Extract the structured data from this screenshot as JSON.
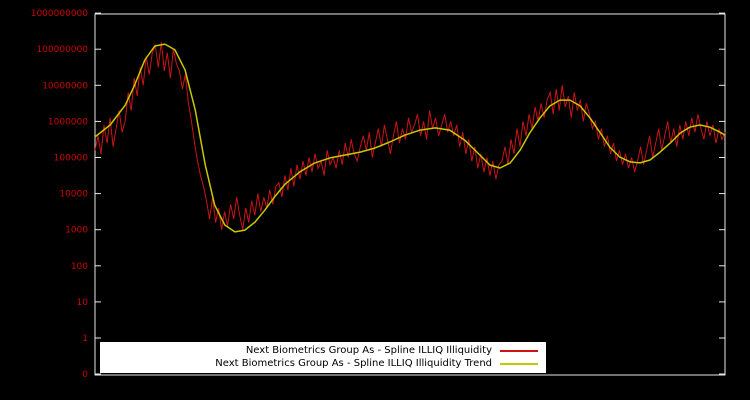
{
  "colors": {
    "background": "#000000",
    "axis_border": "#e8e8e8",
    "tick_label": "#cc0000",
    "legend_background": "#ffffff",
    "legend_text": "#000000"
  },
  "chart_data": {
    "type": "line",
    "title": "",
    "xlabel": "",
    "ylabel": "",
    "x_axis": "time index (no x tick labels shown)",
    "y_scale": "log10",
    "y_ticks_bottom_to_top": [
      "0",
      "1",
      "10",
      "100",
      "1000",
      "10000",
      "100000",
      "1000000",
      "10000000",
      "100000000",
      "1000000000"
    ],
    "grid": "off",
    "legend_position": "bottom-center inside plot, white box",
    "series": [
      {
        "name": "Next Biometrics Group As - Spline ILLIQ Illiquidity",
        "color": "#cc1414",
        "style": "noisy line",
        "y_encoding": "log10(value)",
        "log10_values": [
          5.2,
          5.6,
          5.1,
          5.9,
          5.4,
          6.1,
          5.3,
          5.8,
          6.3,
          5.7,
          6.0,
          6.8,
          6.3,
          7.2,
          6.7,
          7.5,
          7.0,
          7.8,
          7.3,
          7.9,
          8.1,
          7.5,
          8.2,
          7.4,
          7.9,
          7.2,
          8.0,
          7.6,
          7.4,
          6.9,
          7.3,
          6.5,
          6.0,
          5.4,
          4.9,
          4.5,
          4.2,
          3.8,
          3.3,
          3.9,
          3.2,
          3.6,
          3.0,
          3.5,
          3.1,
          3.7,
          3.3,
          3.9,
          3.4,
          3.0,
          3.6,
          3.2,
          3.8,
          3.4,
          4.0,
          3.5,
          3.9,
          3.6,
          4.1,
          3.7,
          4.2,
          4.3,
          3.9,
          4.5,
          4.1,
          4.7,
          4.2,
          4.8,
          4.4,
          4.9,
          4.5,
          5.0,
          4.6,
          5.1,
          4.7,
          4.9,
          4.5,
          5.2,
          4.8,
          5.0,
          4.7,
          5.2,
          4.8,
          5.4,
          5.0,
          5.5,
          5.1,
          4.9,
          5.3,
          5.6,
          5.2,
          5.7,
          5.0,
          5.4,
          5.8,
          5.3,
          5.9,
          5.5,
          5.1,
          5.6,
          6.0,
          5.4,
          5.8,
          5.5,
          6.1,
          5.7,
          5.9,
          6.2,
          5.6,
          6.0,
          5.5,
          6.3,
          5.8,
          6.1,
          5.6,
          5.9,
          6.2,
          5.7,
          6.0,
          5.6,
          5.9,
          5.3,
          5.7,
          5.1,
          5.5,
          4.9,
          5.3,
          4.7,
          5.1,
          4.6,
          5.0,
          4.5,
          4.9,
          4.4,
          4.8,
          4.9,
          5.3,
          4.8,
          5.5,
          5.1,
          5.8,
          5.3,
          6.0,
          5.6,
          6.2,
          5.8,
          6.4,
          6.0,
          6.5,
          6.1,
          6.6,
          6.8,
          6.2,
          6.9,
          6.3,
          7.0,
          6.4,
          6.7,
          6.1,
          6.8,
          6.3,
          6.6,
          6.0,
          6.5,
          6.2,
          5.8,
          6.0,
          5.5,
          5.8,
          5.3,
          5.6,
          5.1,
          5.4,
          4.9,
          5.2,
          4.8,
          5.1,
          4.7,
          5.0,
          4.6,
          4.9,
          5.3,
          4.8,
          5.2,
          5.6,
          5.0,
          5.4,
          5.8,
          5.2,
          5.6,
          6.0,
          5.4,
          5.8,
          5.3,
          5.9,
          5.5,
          6.0,
          5.6,
          6.1,
          5.7,
          6.2,
          5.8,
          5.5,
          6.0,
          5.6,
          5.9,
          5.4,
          5.8,
          5.5,
          5.7
        ]
      },
      {
        "name": "Next Biometrics Group As - Spline ILLIQ Illiquidity Trend",
        "color": "#c8c800",
        "style": "smooth spline",
        "y_encoding": "log10(value)",
        "x": [
          0,
          0.024,
          0.048,
          0.063,
          0.079,
          0.095,
          0.111,
          0.127,
          0.143,
          0.159,
          0.175,
          0.19,
          0.206,
          0.222,
          0.238,
          0.254,
          0.27,
          0.286,
          0.302,
          0.325,
          0.349,
          0.373,
          0.397,
          0.421,
          0.444,
          0.468,
          0.492,
          0.516,
          0.54,
          0.563,
          0.587,
          0.611,
          0.627,
          0.643,
          0.659,
          0.675,
          0.69,
          0.706,
          0.722,
          0.738,
          0.754,
          0.77,
          0.786,
          0.802,
          0.817,
          0.833,
          0.849,
          0.865,
          0.881,
          0.897,
          0.913,
          0.929,
          0.944,
          0.96,
          0.976,
          0.992,
          1
        ],
        "log10_values": [
          5.57,
          5.9,
          6.45,
          7.01,
          7.7,
          8.09,
          8.14,
          7.98,
          7.42,
          6.32,
          4.79,
          3.68,
          3.13,
          2.94,
          2.99,
          3.21,
          3.55,
          3.93,
          4.27,
          4.6,
          4.85,
          4.99,
          5.07,
          5.15,
          5.26,
          5.43,
          5.62,
          5.76,
          5.82,
          5.76,
          5.48,
          5.07,
          4.79,
          4.71,
          4.85,
          5.21,
          5.68,
          6.09,
          6.43,
          6.59,
          6.59,
          6.43,
          6.09,
          5.68,
          5.29,
          5.01,
          4.88,
          4.85,
          4.93,
          5.15,
          5.4,
          5.68,
          5.84,
          5.9,
          5.84,
          5.7,
          5.62
        ]
      }
    ]
  },
  "legend": {
    "items": [
      {
        "label": "Next Biometrics Group As - Spline ILLIQ Illiquidity"
      },
      {
        "label": "Next Biometrics Group As - Spline ILLIQ Illiquidity Trend"
      }
    ]
  }
}
